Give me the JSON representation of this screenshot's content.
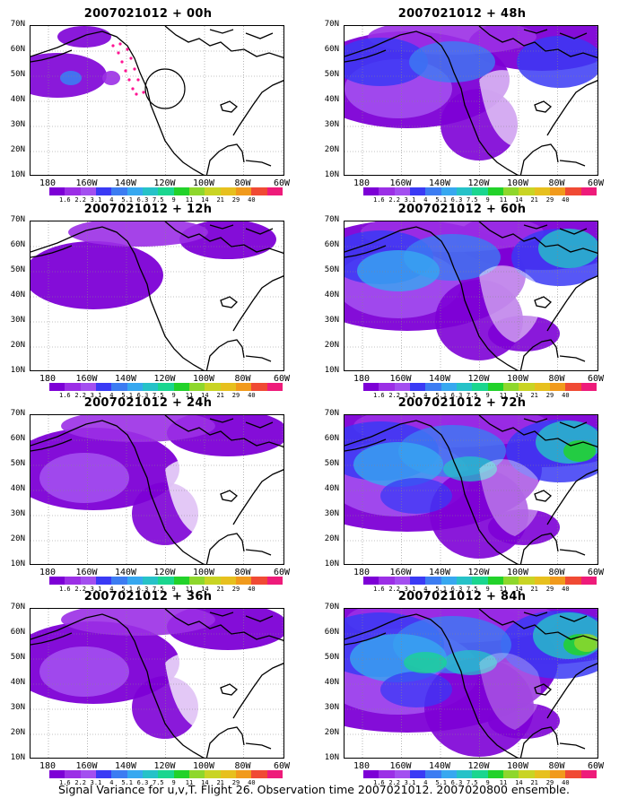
{
  "panels": [
    {
      "id": "p00",
      "title": "2007021012 + 00h",
      "col": 0,
      "row": 0,
      "intensity": 0,
      "track": true
    },
    {
      "id": "p48",
      "title": "2007021012 + 48h",
      "col": 1,
      "row": 0,
      "intensity": 3,
      "track": false
    },
    {
      "id": "p12",
      "title": "2007021012 + 12h",
      "col": 0,
      "row": 1,
      "intensity": 1,
      "track": false
    },
    {
      "id": "p60",
      "title": "2007021012 + 60h",
      "col": 1,
      "row": 1,
      "intensity": 4,
      "track": false
    },
    {
      "id": "p24",
      "title": "2007021012 + 24h",
      "col": 0,
      "row": 2,
      "intensity": 2,
      "track": false
    },
    {
      "id": "p72",
      "title": "2007021012 + 72h",
      "col": 1,
      "row": 2,
      "intensity": 5,
      "track": false
    },
    {
      "id": "p36",
      "title": "2007021012 + 36h",
      "col": 0,
      "row": 3,
      "intensity": 2,
      "track": false
    },
    {
      "id": "p84",
      "title": "2007021012 + 84h",
      "col": 1,
      "row": 3,
      "intensity": 6,
      "track": false
    }
  ],
  "lat_labels": [
    "70N",
    "60N",
    "50N",
    "40N",
    "30N",
    "20N",
    "10N"
  ],
  "lon_labels": [
    "180",
    "160W",
    "140W",
    "120W",
    "100W",
    "80W",
    "60W"
  ],
  "colorbar": {
    "labels": [
      "1.6",
      "2.2",
      "3.1",
      "4",
      "5.1",
      "6.3",
      "7.5",
      "9",
      "11",
      "14",
      "21",
      "29",
      "40"
    ],
    "colors": [
      "#7d00d6",
      "#9b2fe6",
      "#a34ff0",
      "#3a3af5",
      "#3c7cf2",
      "#37a8f0",
      "#26c2c8",
      "#1ad68f",
      "#22d22a",
      "#8ed72c",
      "#c9d424",
      "#e7c01e",
      "#f19a1c",
      "#f04a34",
      "#ee1b7a"
    ]
  },
  "caption": "Signal Variance for u,v,T. Flight 26. Observation time 2007021012. 2007020800 ensemble."
}
